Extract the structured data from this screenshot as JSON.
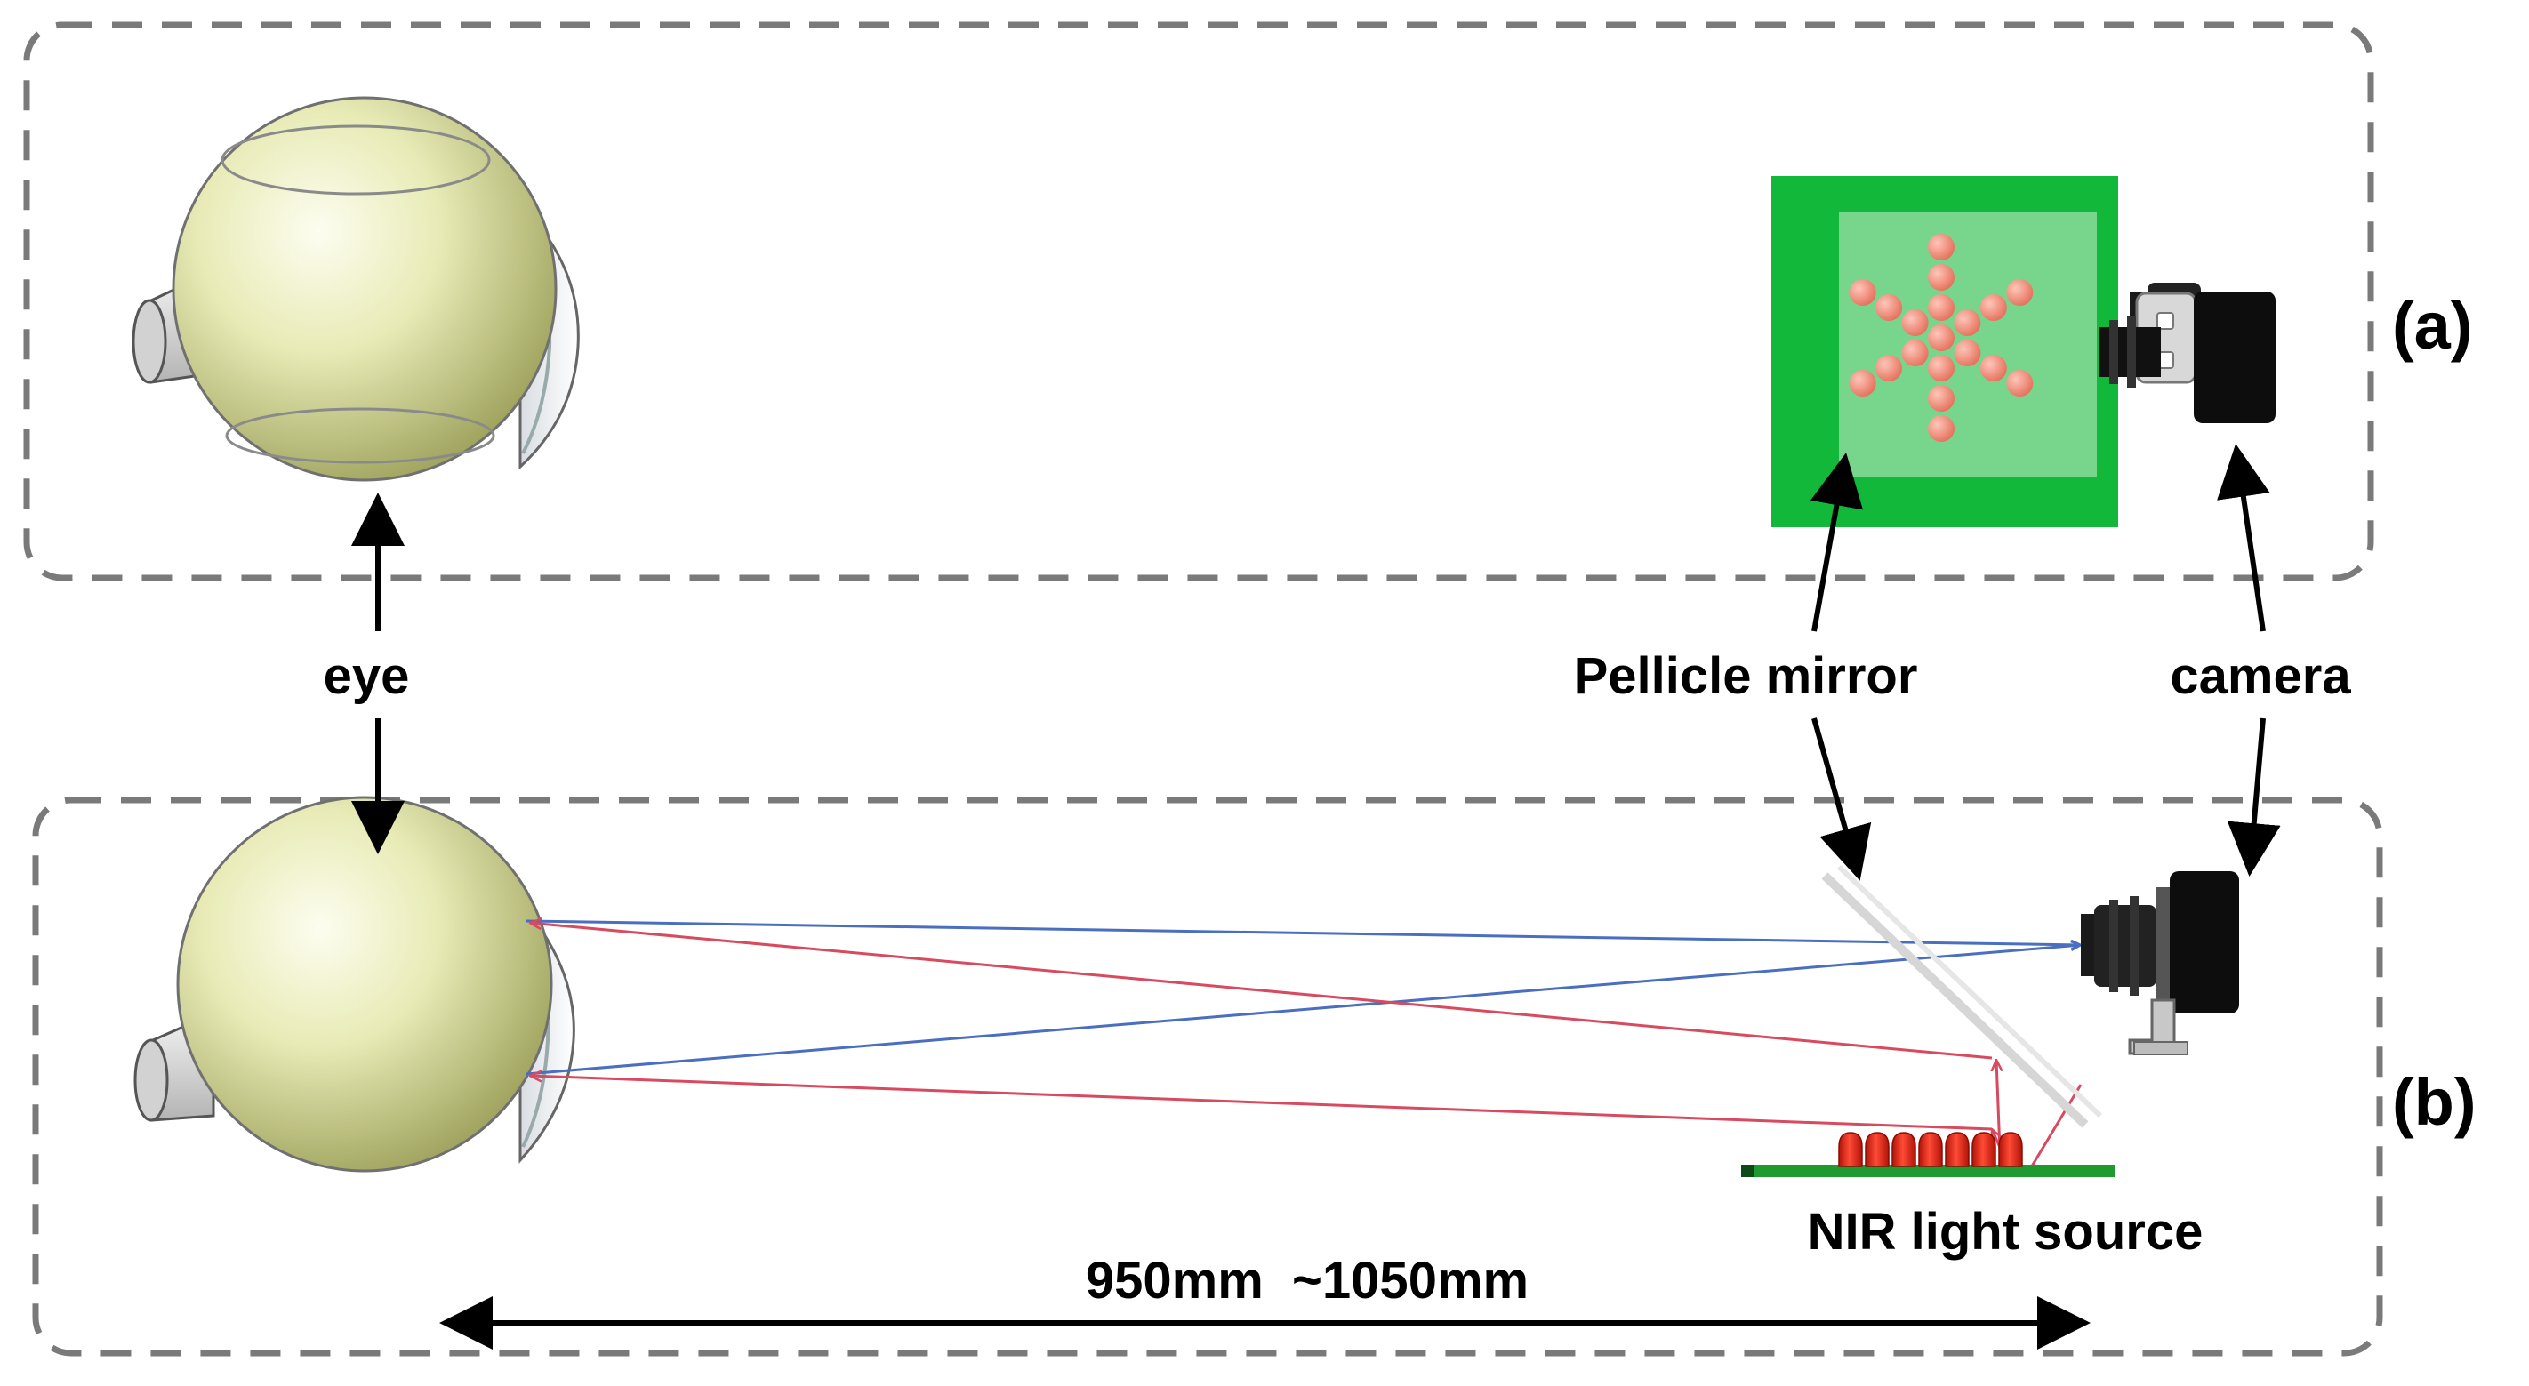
{
  "panels": [
    {
      "id": "a",
      "tag": "(a)"
    },
    {
      "id": "b",
      "tag": "(b)"
    }
  ],
  "labels": {
    "eye": "eye",
    "mirror": "Pellicle mirror",
    "camera": "camera",
    "light_source": "NIR light source",
    "distance": "950mm  ~1050mm"
  },
  "colors": {
    "panel_border": "#7a7a7a",
    "mirror_frame": "#12b83a",
    "mirror_glass": "#78d68c",
    "glint_dot": "#f08270",
    "ray_blue": "#4a6ec0",
    "ray_red": "#d84a60",
    "led_red": "#e82a1c",
    "pcb_green": "#1f9a2e",
    "eyeball": "#e4e7ae",
    "camera_body": "#111111"
  }
}
